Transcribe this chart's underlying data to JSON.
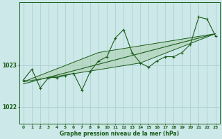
{
  "title": "Graphe pression niveau de la mer (hPa)",
  "background_color": "#cce8e8",
  "grid_color": "#a8cccc",
  "line_color": "#1a5c1a",
  "fill_color": "#a8cca8",
  "xlim": [
    -0.5,
    23.5
  ],
  "ylim": [
    1021.6,
    1024.5
  ],
  "yticks": [
    1022,
    1023
  ],
  "x_ticks": [
    0,
    1,
    2,
    3,
    4,
    5,
    6,
    7,
    8,
    9,
    10,
    11,
    12,
    13,
    14,
    15,
    16,
    17,
    18,
    19,
    20,
    21,
    22,
    23
  ],
  "main_line_x": [
    0,
    1,
    2,
    3,
    4,
    5,
    6,
    7,
    8,
    9,
    10,
    11,
    12,
    13,
    14,
    15,
    16,
    17,
    18,
    19,
    20,
    21,
    22,
    23
  ],
  "main_line_y": [
    1022.65,
    1022.9,
    1022.45,
    1022.7,
    1022.7,
    1022.75,
    1022.8,
    1022.4,
    1022.85,
    1023.1,
    1023.2,
    1023.65,
    1023.85,
    1023.3,
    1023.05,
    1022.95,
    1023.1,
    1023.2,
    1023.2,
    1023.3,
    1023.5,
    1024.15,
    1024.1,
    1023.7
  ],
  "trend_line_x": [
    0,
    23
  ],
  "trend_line_y": [
    1022.55,
    1023.75
  ],
  "envelope_x": [
    0,
    14,
    23,
    9,
    0
  ],
  "envelope_y": [
    1022.65,
    1023.05,
    1023.75,
    1023.3,
    1022.65
  ]
}
